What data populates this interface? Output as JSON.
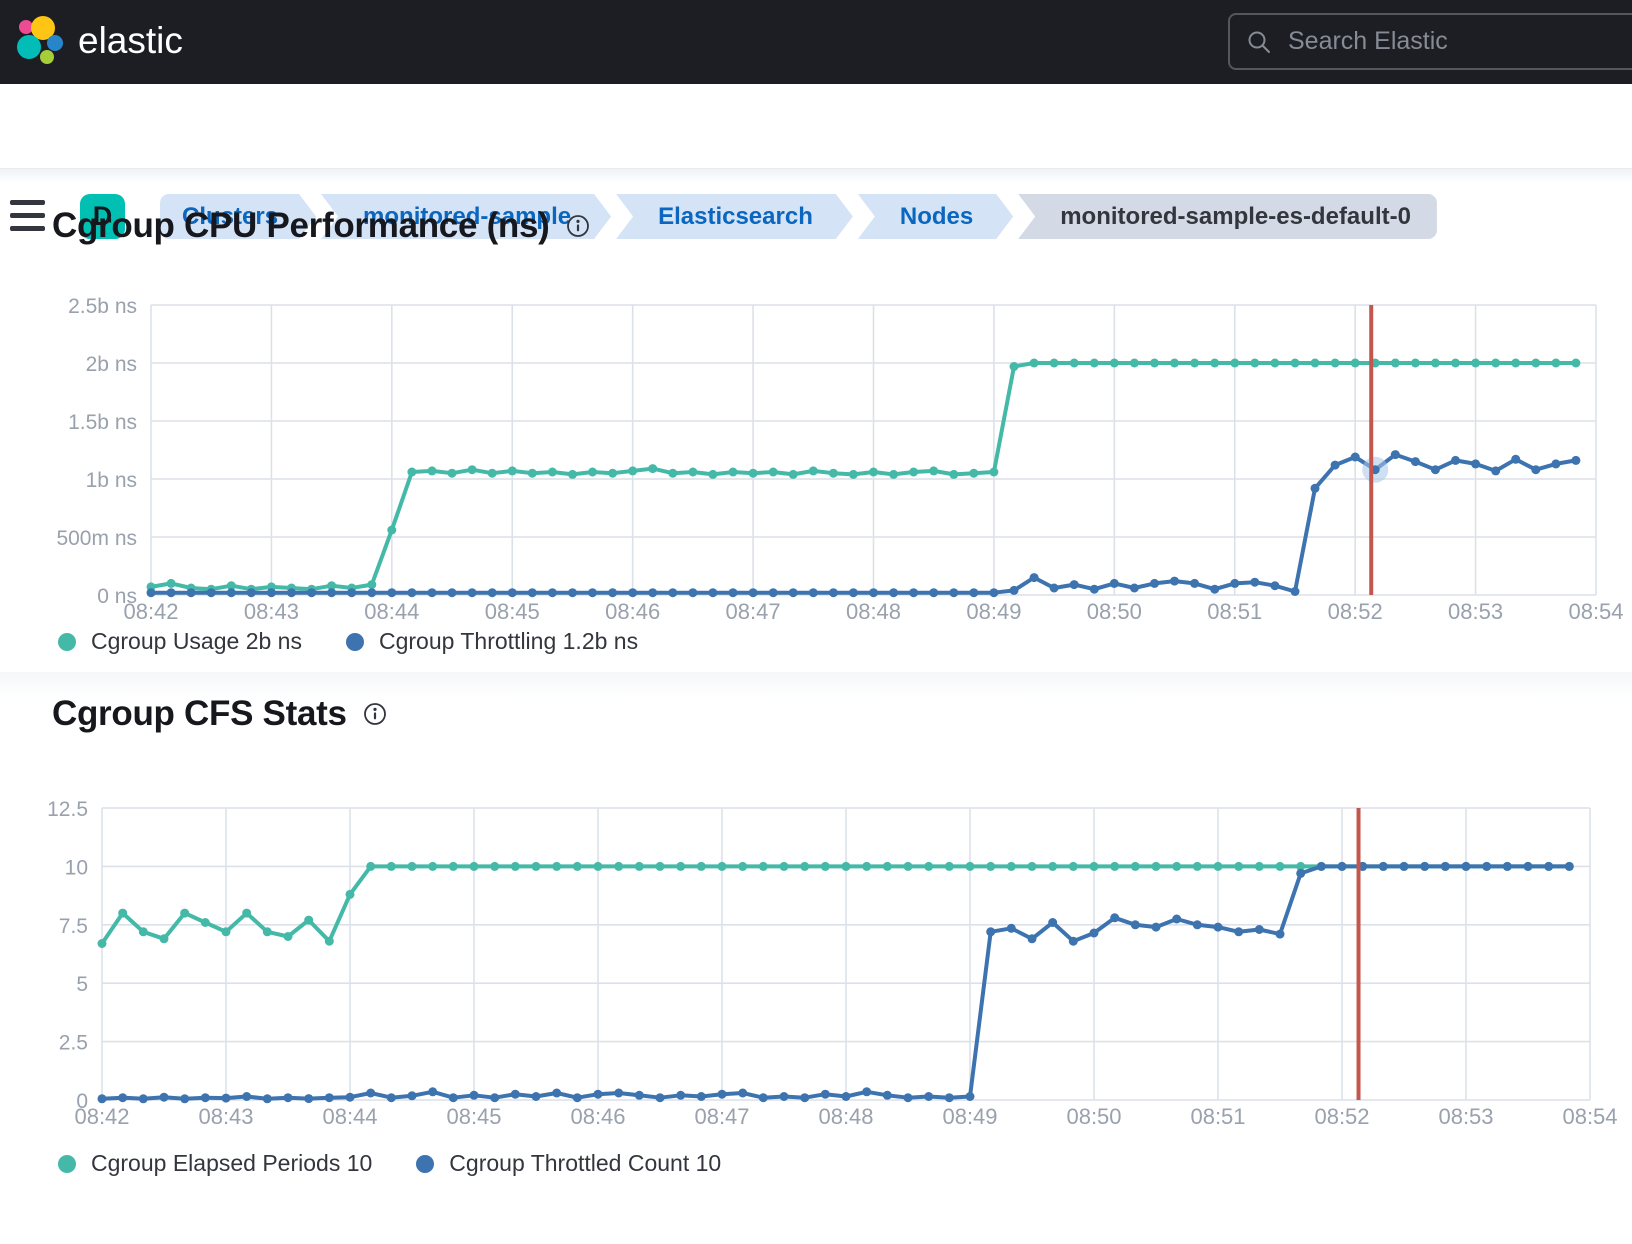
{
  "header": {
    "brand": "elastic",
    "search_placeholder": "Search Elastic"
  },
  "breadcrumb": {
    "space_badge": "D",
    "items": [
      {
        "label": "Clusters",
        "type": "link"
      },
      {
        "label": "monitored-sample",
        "type": "link"
      },
      {
        "label": "Elasticsearch",
        "type": "link"
      },
      {
        "label": "Nodes",
        "type": "link"
      },
      {
        "label": "monitored-sample-es-default-0",
        "type": "current"
      }
    ]
  },
  "colors": {
    "header_bg": "#1C1E24",
    "badge_teal": "#00BFB3",
    "breadcrumb_blue_bg": "#D4E4F6",
    "breadcrumb_blue_text": "#0A66BE",
    "breadcrumb_gray_bg": "#D3DAE6",
    "grid": "#DCE1E9",
    "axis_label": "#99A1AD",
    "teal_series": "#45B9A8",
    "blue_series": "#3D73AF",
    "annotation_red": "#C4574D",
    "hover_halo": "#A8C7E7"
  },
  "chart_data": [
    {
      "type": "line",
      "title": "Cgroup CPU Performance (ns)",
      "start_time": "08:42",
      "interval_seconds": 10,
      "x_labels": [
        "08:42",
        "08:43",
        "08:44",
        "08:45",
        "08:46",
        "08:47",
        "08:48",
        "08:49",
        "08:50",
        "08:51",
        "08:52",
        "08:53",
        "08:54"
      ],
      "ylim": [
        0,
        2.5
      ],
      "y_unit": "b ns",
      "y_ticks": [
        {
          "v": 0,
          "label": "0 ns"
        },
        {
          "v": 0.5,
          "label": "500m ns"
        },
        {
          "v": 1,
          "label": "1b ns"
        },
        {
          "v": 1.5,
          "label": "1.5b ns"
        },
        {
          "v": 2,
          "label": "2b ns"
        },
        {
          "v": 2.5,
          "label": "2.5b ns"
        }
      ],
      "annotation": {
        "minutes_from_start": 10.1333,
        "color": "#C4574D"
      },
      "series": [
        {
          "name": "Cgroup Usage 2b ns",
          "current_value": "2b ns",
          "color": "#45B9A8",
          "values": [
            0.07,
            0.1,
            0.06,
            0.05,
            0.08,
            0.05,
            0.07,
            0.06,
            0.05,
            0.08,
            0.06,
            0.09,
            0.56,
            1.06,
            1.07,
            1.05,
            1.08,
            1.05,
            1.07,
            1.05,
            1.06,
            1.04,
            1.06,
            1.05,
            1.07,
            1.09,
            1.05,
            1.06,
            1.04,
            1.06,
            1.05,
            1.06,
            1.04,
            1.07,
            1.05,
            1.04,
            1.06,
            1.04,
            1.06,
            1.07,
            1.04,
            1.05,
            1.06,
            1.97,
            2,
            2,
            2,
            2,
            2,
            2,
            2,
            2,
            2,
            2,
            2,
            2,
            2,
            2,
            2,
            2,
            2,
            2,
            2,
            2,
            2,
            2,
            2,
            2,
            2,
            2,
            2,
            2
          ]
        },
        {
          "name": "Cgroup Throttling 1.2b ns",
          "current_value": "1.2b ns",
          "color": "#3D73AF",
          "highlight_index": 61,
          "values": [
            0.02,
            0.02,
            0.02,
            0.02,
            0.02,
            0.02,
            0.02,
            0.02,
            0.02,
            0.02,
            0.02,
            0.02,
            0.02,
            0.02,
            0.02,
            0.02,
            0.02,
            0.02,
            0.02,
            0.02,
            0.02,
            0.02,
            0.02,
            0.02,
            0.02,
            0.02,
            0.02,
            0.02,
            0.02,
            0.02,
            0.02,
            0.02,
            0.02,
            0.02,
            0.02,
            0.02,
            0.02,
            0.02,
            0.02,
            0.02,
            0.02,
            0.02,
            0.02,
            0.04,
            0.15,
            0.06,
            0.09,
            0.05,
            0.1,
            0.06,
            0.1,
            0.12,
            0.1,
            0.05,
            0.1,
            0.11,
            0.08,
            0.03,
            0.92,
            1.12,
            1.19,
            1.08,
            1.21,
            1.15,
            1.08,
            1.16,
            1.13,
            1.07,
            1.17,
            1.08,
            1.13,
            1.16
          ]
        }
      ]
    },
    {
      "type": "line",
      "title": "Cgroup CFS Stats",
      "start_time": "08:42",
      "interval_seconds": 10,
      "x_labels": [
        "08:42",
        "08:43",
        "08:44",
        "08:45",
        "08:46",
        "08:47",
        "08:48",
        "08:49",
        "08:50",
        "08:51",
        "08:52",
        "08:53",
        "08:54"
      ],
      "ylim": [
        0,
        12.5
      ],
      "y_unit": "",
      "y_ticks": [
        {
          "v": 0,
          "label": "0"
        },
        {
          "v": 2.5,
          "label": "2.5"
        },
        {
          "v": 5,
          "label": "5"
        },
        {
          "v": 7.5,
          "label": "7.5"
        },
        {
          "v": 10,
          "label": "10"
        },
        {
          "v": 12.5,
          "label": "12.5"
        }
      ],
      "annotation": {
        "minutes_from_start": 10.1333,
        "color": "#C4574D"
      },
      "series": [
        {
          "name": "Cgroup Elapsed Periods 10",
          "current_value": "10",
          "color": "#45B9A8",
          "values": [
            6.7,
            8.0,
            7.2,
            6.9,
            8.0,
            7.6,
            7.2,
            8.0,
            7.2,
            7.0,
            7.7,
            6.8,
            8.8,
            10,
            10,
            10,
            10,
            10,
            10,
            10,
            10,
            10,
            10,
            10,
            10,
            10,
            10,
            10,
            10,
            10,
            10,
            10,
            10,
            10,
            10,
            10,
            10,
            10,
            10,
            10,
            10,
            10,
            10,
            10,
            10,
            10,
            10,
            10,
            10,
            10,
            10,
            10,
            10,
            10,
            10,
            10,
            10,
            10,
            10,
            10,
            10,
            10,
            10,
            10,
            10,
            10,
            10,
            10,
            10,
            10,
            10,
            10
          ]
        },
        {
          "name": "Cgroup Throttled Count 10",
          "current_value": "10",
          "color": "#3D73AF",
          "values": [
            0.05,
            0.1,
            0.05,
            0.12,
            0.05,
            0.1,
            0.08,
            0.15,
            0.05,
            0.1,
            0.06,
            0.1,
            0.12,
            0.3,
            0.1,
            0.18,
            0.35,
            0.1,
            0.2,
            0.1,
            0.25,
            0.15,
            0.3,
            0.1,
            0.25,
            0.3,
            0.2,
            0.1,
            0.2,
            0.15,
            0.25,
            0.3,
            0.1,
            0.15,
            0.1,
            0.25,
            0.15,
            0.35,
            0.2,
            0.1,
            0.15,
            0.1,
            0.15,
            7.2,
            7.35,
            6.9,
            7.6,
            6.8,
            7.15,
            7.8,
            7.5,
            7.4,
            7.75,
            7.5,
            7.4,
            7.2,
            7.3,
            7.1,
            9.7,
            10,
            10,
            10,
            10,
            10,
            10,
            10,
            10,
            10,
            10,
            10,
            10,
            10
          ]
        }
      ]
    }
  ]
}
